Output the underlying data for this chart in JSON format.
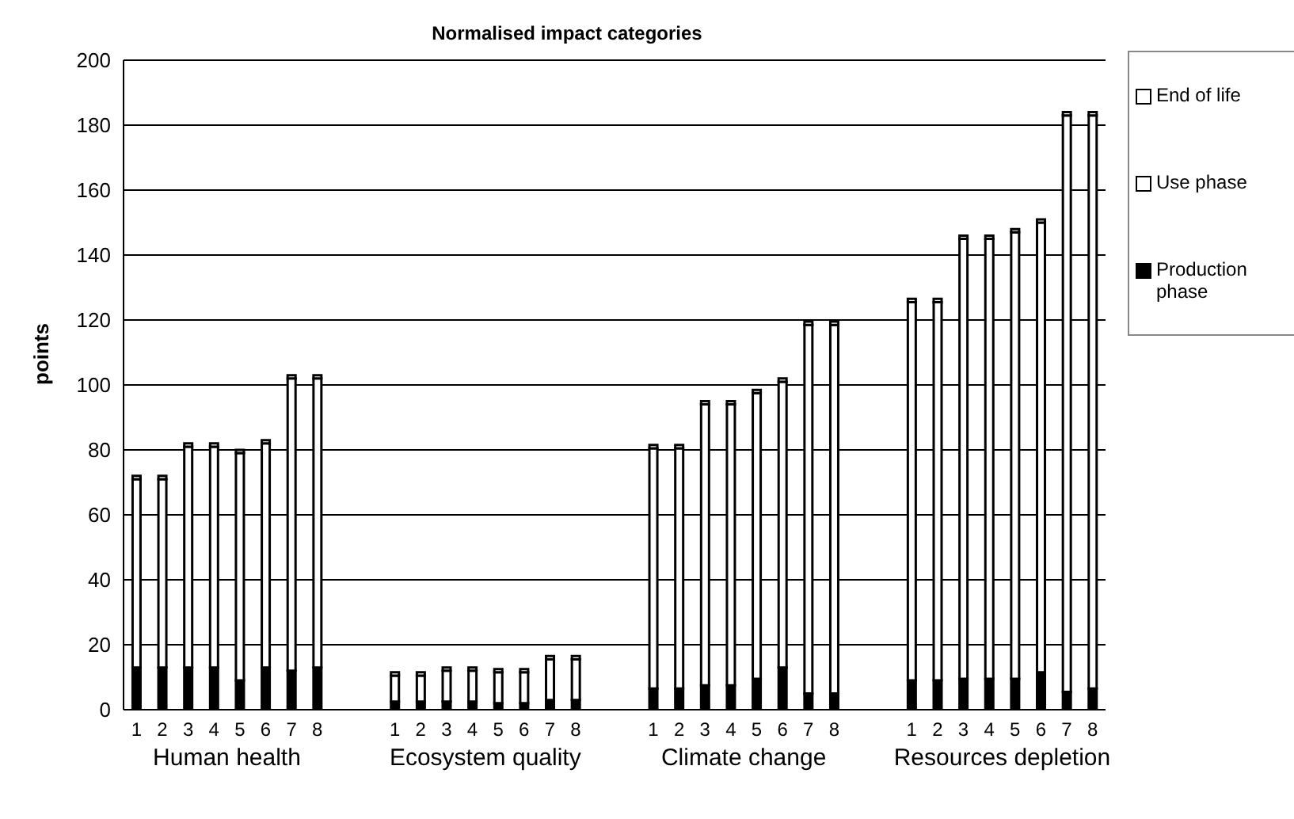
{
  "chart_data": {
    "type": "bar",
    "title": "Normalised impact categories",
    "ylabel": "points",
    "stacked": true,
    "categories": [
      "1",
      "2",
      "3",
      "4",
      "5",
      "6",
      "7",
      "8",
      null,
      null,
      "1",
      "2",
      "3",
      "4",
      "5",
      "6",
      "7",
      "8",
      null,
      null,
      "1",
      "2",
      "3",
      "4",
      "5",
      "6",
      "7",
      "8",
      null,
      null,
      "1",
      "2",
      "3",
      "4",
      "5",
      "6",
      "7",
      "8"
    ],
    "series": [
      {
        "name": "Production phase",
        "color": "#000000",
        "values": [
          13,
          13,
          13,
          13,
          9,
          13,
          12,
          13,
          null,
          null,
          2.5,
          2.5,
          2.5,
          2.5,
          2,
          2,
          3,
          3,
          null,
          null,
          6.5,
          6.5,
          7.5,
          7.5,
          9.5,
          13,
          5,
          5,
          null,
          null,
          9,
          9,
          9.5,
          9.5,
          9.5,
          11.5,
          5.5,
          6.5
        ]
      },
      {
        "name": "Use phase",
        "color": "#ffffff",
        "values": [
          58,
          58,
          68,
          68,
          70,
          69,
          90,
          89,
          null,
          null,
          8,
          8,
          9.5,
          9.5,
          9.5,
          9.5,
          12.5,
          12.5,
          null,
          null,
          74,
          74,
          86.5,
          86.5,
          88,
          88,
          113.5,
          113.5,
          null,
          null,
          116.5,
          116.5,
          135.5,
          135.5,
          137.5,
          138.5,
          177.5,
          176.5
        ]
      },
      {
        "name": "End of life",
        "color": "#ffffff",
        "values": [
          1,
          1,
          1,
          1,
          1,
          1,
          1,
          1,
          null,
          null,
          1,
          1,
          1,
          1,
          1,
          1,
          1,
          1,
          null,
          null,
          1,
          1,
          1,
          1,
          1,
          1,
          1,
          1,
          null,
          null,
          1,
          1,
          1,
          1,
          1,
          1,
          1,
          1
        ]
      }
    ],
    "annotations": [
      "Human health",
      "Ecosystem quality",
      "Climate change",
      "Resources depletion"
    ],
    "ylim": [
      0,
      200
    ],
    "yticks": [
      0,
      20,
      40,
      60,
      80,
      100,
      120,
      140,
      160,
      180,
      200
    ],
    "grid": "y",
    "legend": "top right"
  }
}
